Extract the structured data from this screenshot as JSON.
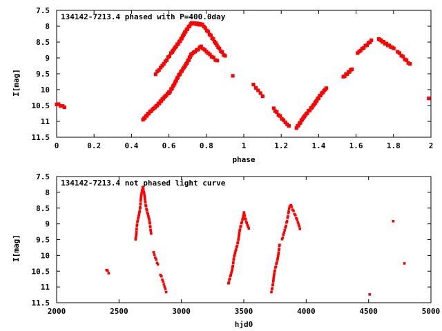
{
  "chart_data": [
    {
      "type": "scatter",
      "title": "134142-7213.4 phased with P=400.0day",
      "xlabel": "phase",
      "ylabel": "I[mag]",
      "xlim": [
        0,
        2
      ],
      "ylim": [
        7.5,
        11.5
      ],
      "y_inverted": true,
      "xticks": [
        "0",
        "0.2",
        "0.4",
        "0.6",
        "0.8",
        "1",
        "1.2",
        "1.4",
        "1.6",
        "1.8",
        "2"
      ],
      "yticks": [
        "7.5",
        "8",
        "8.5",
        "9",
        "9.5",
        "10",
        "10.5",
        "11",
        "11.5"
      ],
      "grid": false,
      "marker_color": "#ff0000",
      "segments": [
        {
          "x0": 0.0,
          "x1": 0.04,
          "y0": 10.45,
          "y1": 10.55,
          "n": 5
        },
        {
          "x0": 0.46,
          "x1": 0.6,
          "y0": 10.95,
          "y1": 10.1,
          "n": 25
        },
        {
          "x0": 0.6,
          "x1": 0.72,
          "y0": 10.1,
          "y1": 8.9,
          "n": 25
        },
        {
          "x0": 0.72,
          "x1": 0.77,
          "y0": 8.9,
          "y1": 8.65,
          "n": 8
        },
        {
          "x0": 0.77,
          "x1": 0.86,
          "y0": 8.65,
          "y1": 9.1,
          "n": 10
        },
        {
          "x0": 0.53,
          "x1": 0.62,
          "y0": 9.5,
          "y1": 8.8,
          "n": 12
        },
        {
          "x0": 0.62,
          "x1": 0.72,
          "y0": 8.8,
          "y1": 7.9,
          "n": 22
        },
        {
          "x0": 0.72,
          "x1": 0.78,
          "y0": 7.9,
          "y1": 7.95,
          "n": 10
        },
        {
          "x0": 0.78,
          "x1": 0.9,
          "y0": 7.95,
          "y1": 8.95,
          "n": 18
        },
        {
          "x0": 0.94,
          "x1": 0.94,
          "y0": 9.55,
          "y1": 9.55,
          "n": 1
        },
        {
          "x0": 1.05,
          "x1": 1.1,
          "y0": 9.85,
          "y1": 10.2,
          "n": 5
        },
        {
          "x0": 1.16,
          "x1": 1.24,
          "y0": 10.6,
          "y1": 11.15,
          "n": 10
        },
        {
          "x0": 1.28,
          "x1": 1.44,
          "y0": 11.2,
          "y1": 9.95,
          "n": 30
        },
        {
          "x0": 1.53,
          "x1": 1.58,
          "y0": 9.6,
          "y1": 9.35,
          "n": 8
        },
        {
          "x0": 1.61,
          "x1": 1.68,
          "y0": 8.85,
          "y1": 8.45,
          "n": 10
        },
        {
          "x0": 1.72,
          "x1": 1.8,
          "y0": 8.4,
          "y1": 8.7,
          "n": 12
        },
        {
          "x0": 1.82,
          "x1": 1.89,
          "y0": 8.8,
          "y1": 9.2,
          "n": 8
        },
        {
          "x0": 1.99,
          "x1": 1.99,
          "y0": 10.27,
          "y1": 10.27,
          "n": 1
        }
      ]
    },
    {
      "type": "scatter",
      "title": "134142-7213.4 not phased light curve",
      "xlabel": "hjd0",
      "ylabel": "I[mag]",
      "xlim": [
        2000,
        5000
      ],
      "ylim": [
        7.5,
        11.5
      ],
      "y_inverted": true,
      "xticks": [
        "2000",
        "2500",
        "3000",
        "3500",
        "4000",
        "4500",
        "5000"
      ],
      "yticks": [
        "7.5",
        "8",
        "8.5",
        "9",
        "9.5",
        "10",
        "10.5",
        "11",
        "11.5"
      ],
      "grid": false,
      "marker_color": "#ff0000",
      "segments": [
        {
          "x0": 2400,
          "x1": 2415,
          "y0": 10.45,
          "y1": 10.55,
          "n": 3
        },
        {
          "x0": 2630,
          "x1": 2690,
          "y0": 9.5,
          "y1": 7.85,
          "n": 28
        },
        {
          "x0": 2690,
          "x1": 2760,
          "y0": 7.85,
          "y1": 9.3,
          "n": 25
        },
        {
          "x0": 2780,
          "x1": 2810,
          "y0": 9.9,
          "y1": 10.3,
          "n": 6
        },
        {
          "x0": 2830,
          "x1": 2880,
          "y0": 10.6,
          "y1": 11.15,
          "n": 8
        },
        {
          "x0": 3380,
          "x1": 3500,
          "y0": 10.9,
          "y1": 8.65,
          "n": 40
        },
        {
          "x0": 3500,
          "x1": 3540,
          "y0": 8.65,
          "y1": 9.15,
          "n": 10
        },
        {
          "x0": 3720,
          "x1": 3790,
          "y0": 11.15,
          "y1": 9.65,
          "n": 25
        },
        {
          "x0": 3810,
          "x1": 3870,
          "y0": 9.5,
          "y1": 8.45,
          "n": 15
        },
        {
          "x0": 3880,
          "x1": 3950,
          "y0": 8.4,
          "y1": 9.15,
          "n": 12
        },
        {
          "x0": 4510,
          "x1": 4510,
          "y0": 11.25,
          "y1": 11.25,
          "n": 1
        },
        {
          "x0": 4700,
          "x1": 4700,
          "y0": 8.9,
          "y1": 8.9,
          "n": 1
        },
        {
          "x0": 4790,
          "x1": 4790,
          "y0": 10.27,
          "y1": 10.27,
          "n": 1
        }
      ]
    }
  ]
}
